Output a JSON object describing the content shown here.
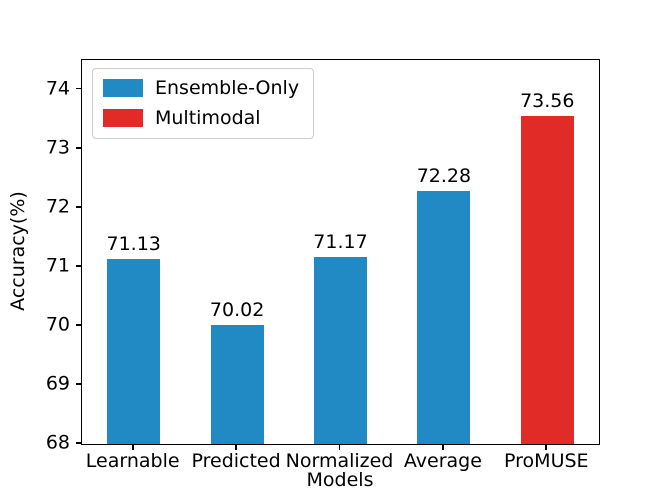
{
  "figure": {
    "background": "#ffffff",
    "text_color": "#000000",
    "spine_color": "#000000"
  },
  "chart_data": {
    "type": "bar",
    "title": "",
    "xlabel": "Models",
    "ylabel": "Accuracy(%)",
    "categories": [
      "Learnable",
      "Predicted",
      "Normalized",
      "Average",
      "ProMUSE"
    ],
    "values": [
      71.13,
      70.02,
      71.17,
      72.28,
      73.56
    ],
    "bar_value_labels": [
      "71.13",
      "70.02",
      "71.17",
      "72.28",
      "73.56"
    ],
    "bar_series": [
      "Ensemble-Only",
      "Ensemble-Only",
      "Ensemble-Only",
      "Ensemble-Only",
      "Multimodal"
    ],
    "ylim": [
      68,
      74.5
    ],
    "yticks": [
      68,
      69,
      70,
      71,
      72,
      73,
      74
    ],
    "grid": false,
    "legend": {
      "position": "upper-left",
      "entries": [
        {
          "label": "Ensemble-Only",
          "color": "#2189c4"
        },
        {
          "label": "Multimodal",
          "color": "#e02b27"
        }
      ]
    }
  }
}
